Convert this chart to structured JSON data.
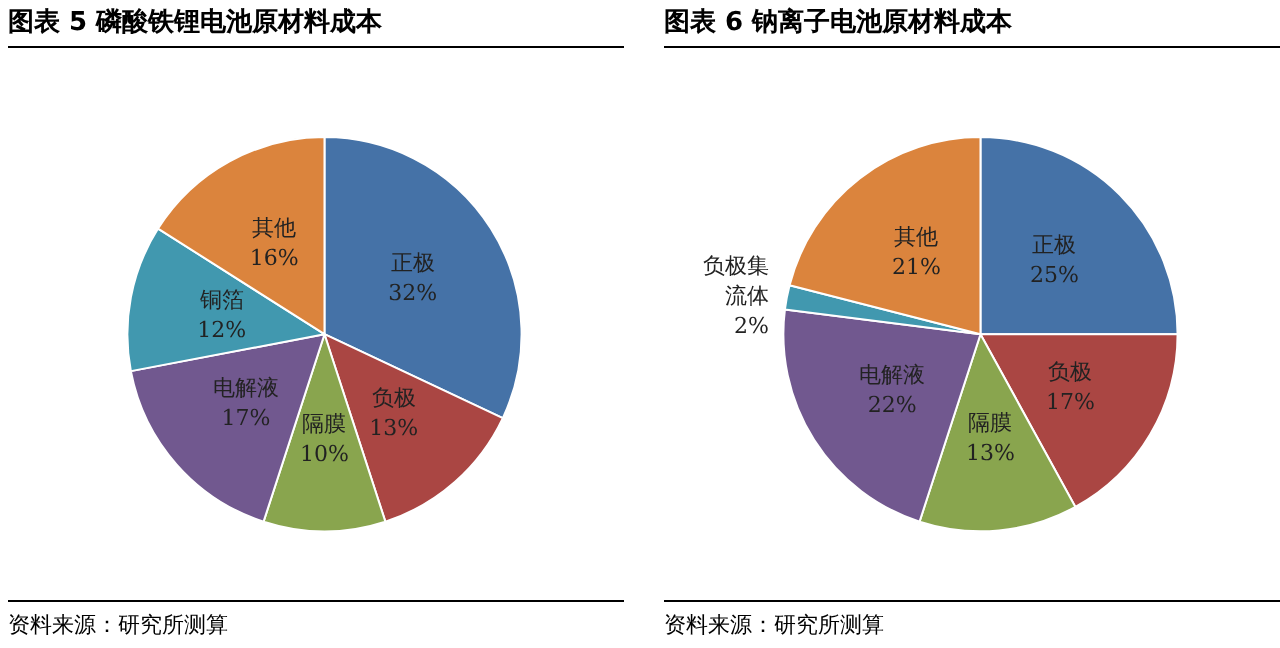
{
  "chart_data": [
    {
      "type": "pie",
      "title": "图表 5  磷酸铁锂电池原材料成本",
      "categories": [
        "正极",
        "负极",
        "隔膜",
        "电解液",
        "铜箔",
        "其他"
      ],
      "values": [
        32,
        13,
        10,
        17,
        12,
        16
      ],
      "value_labels": [
        "32%",
        "13%",
        "10%",
        "17%",
        "12%",
        "16%"
      ],
      "colors": [
        "#4572a7",
        "#aa4643",
        "#89a54e",
        "#71588f",
        "#4198af",
        "#db843d"
      ],
      "legend": false,
      "annotations": [
        "资料来源：研究所测算"
      ]
    },
    {
      "type": "pie",
      "title": "图表 6  钠离子电池原材料成本",
      "categories": [
        "正极",
        "负极",
        "隔膜",
        "电解液",
        "负极集流体",
        "其他"
      ],
      "values": [
        25,
        17,
        13,
        22,
        2,
        21
      ],
      "value_labels": [
        "25%",
        "17%",
        "13%",
        "22%",
        "2%",
        "21%"
      ],
      "colors": [
        "#4572a7",
        "#aa4643",
        "#89a54e",
        "#71588f",
        "#4198af",
        "#db843d"
      ],
      "legend": false,
      "annotations": [
        "资料来源：研究所测算"
      ]
    }
  ]
}
